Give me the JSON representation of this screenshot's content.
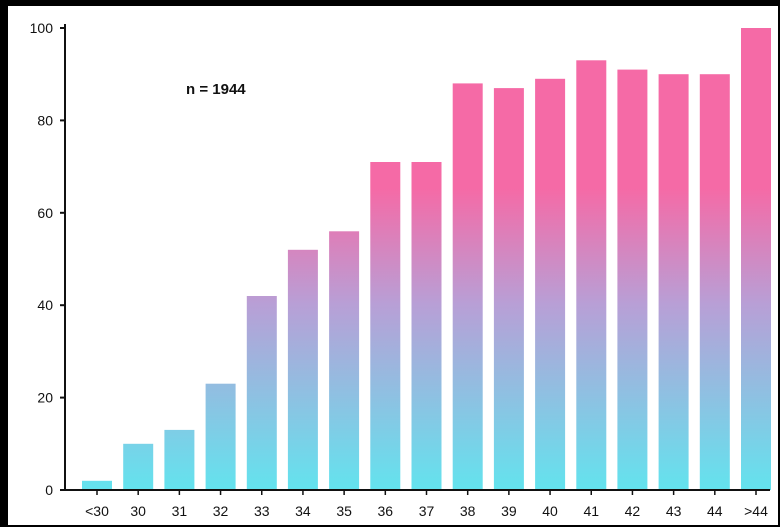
{
  "chart_data": {
    "type": "bar",
    "annotation": "n = 1944",
    "categories": [
      "<30",
      "30",
      "31",
      "32",
      "33",
      "34",
      "35",
      "36",
      "37",
      "38",
      "39",
      "40",
      "41",
      "42",
      "43",
      "44",
      ">44"
    ],
    "values": [
      2,
      10,
      13,
      23,
      42,
      52,
      56,
      71,
      71,
      88,
      87,
      89,
      93,
      91,
      90,
      90,
      100
    ],
    "ylim": [
      0,
      100
    ],
    "yticks": [
      0,
      20,
      40,
      60,
      80,
      100
    ],
    "xlabel": "",
    "ylabel": "",
    "grid": false,
    "colors": {
      "bar_top": "#f56aa6",
      "bar_bottom": "#63e3ee",
      "axis": "#111111"
    }
  }
}
